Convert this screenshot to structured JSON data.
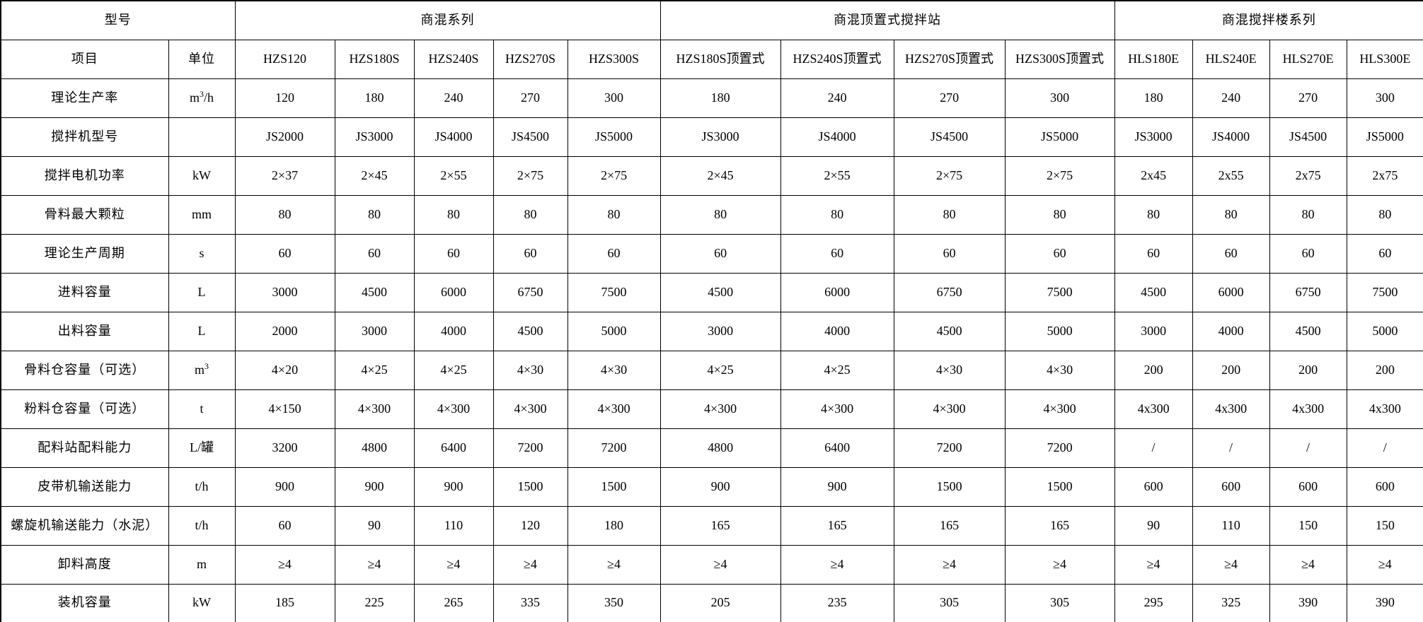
{
  "table": {
    "header_row1": {
      "model_label": "型号",
      "groups": [
        {
          "label": "商混系列",
          "span": 5
        },
        {
          "label": "商混顶置式搅拌站",
          "span": 4
        },
        {
          "label": "商混搅拌楼系列",
          "span": 4
        }
      ]
    },
    "header_row2": {
      "item_label": "项目",
      "unit_label": "单位",
      "models": [
        "HZS120",
        "HZS180S",
        "HZS240S",
        "HZS270S",
        "HZS300S",
        "HZS180S顶置式",
        "HZS240S顶置式",
        "HZS270S顶置式",
        "HZS300S顶置式",
        "HLS180E",
        "HLS240E",
        "HLS270E",
        "HLS300E"
      ]
    },
    "rows": [
      {
        "label": "理论生产率",
        "unit": "m³/h",
        "values": [
          "120",
          "180",
          "240",
          "270",
          "300",
          "180",
          "240",
          "270",
          "300",
          "180",
          "240",
          "270",
          "300"
        ]
      },
      {
        "label": "搅拌机型号",
        "unit": "",
        "values": [
          "JS2000",
          "JS3000",
          "JS4000",
          "JS4500",
          "JS5000",
          "JS3000",
          "JS4000",
          "JS4500",
          "JS5000",
          "JS3000",
          "JS4000",
          "JS4500",
          "JS5000"
        ]
      },
      {
        "label": "搅拌电机功率",
        "unit": "kW",
        "values": [
          "2×37",
          "2×45",
          "2×55",
          "2×75",
          "2×75",
          "2×45",
          "2×55",
          "2×75",
          "2×75",
          "2x45",
          "2x55",
          "2x75",
          "2x75"
        ]
      },
      {
        "label": "骨料最大颗粒",
        "unit": "mm",
        "values": [
          "80",
          "80",
          "80",
          "80",
          "80",
          "80",
          "80",
          "80",
          "80",
          "80",
          "80",
          "80",
          "80"
        ]
      },
      {
        "label": "理论生产周期",
        "unit": "s",
        "values": [
          "60",
          "60",
          "60",
          "60",
          "60",
          "60",
          "60",
          "60",
          "60",
          "60",
          "60",
          "60",
          "60"
        ]
      },
      {
        "label": "进料容量",
        "unit": "L",
        "values": [
          "3000",
          "4500",
          "6000",
          "6750",
          "7500",
          "4500",
          "6000",
          "6750",
          "7500",
          "4500",
          "6000",
          "6750",
          "7500"
        ]
      },
      {
        "label": "出料容量",
        "unit": "L",
        "values": [
          "2000",
          "3000",
          "4000",
          "4500",
          "5000",
          "3000",
          "4000",
          "4500",
          "5000",
          "3000",
          "4000",
          "4500",
          "5000"
        ]
      },
      {
        "label": "骨料仓容量（可选）",
        "unit": "m³",
        "values": [
          "4×20",
          "4×25",
          "4×25",
          "4×30",
          "4×30",
          "4×25",
          "4×25",
          "4×30",
          "4×30",
          "200",
          "200",
          "200",
          "200"
        ]
      },
      {
        "label": "粉料仓容量（可选）",
        "unit": "t",
        "values": [
          "4×150",
          "4×300",
          "4×300",
          "4×300",
          "4×300",
          "4×300",
          "4×300",
          "4×300",
          "4×300",
          "4x300",
          "4x300",
          "4x300",
          "4x300"
        ]
      },
      {
        "label": "配料站配料能力",
        "unit": "L/罐",
        "values": [
          "3200",
          "4800",
          "6400",
          "7200",
          "7200",
          "4800",
          "6400",
          "7200",
          "7200",
          "/",
          "/",
          "/",
          "/"
        ]
      },
      {
        "label": "皮带机输送能力",
        "unit": "t/h",
        "values": [
          "900",
          "900",
          "900",
          "1500",
          "1500",
          "900",
          "900",
          "1500",
          "1500",
          "600",
          "600",
          "600",
          "600"
        ]
      },
      {
        "label": "螺旋机输送能力（水泥）",
        "unit": "t/h",
        "values": [
          "60",
          "90",
          "110",
          "120",
          "180",
          "165",
          "165",
          "165",
          "165",
          "90",
          "110",
          "150",
          "150"
        ]
      },
      {
        "label": "卸料高度",
        "unit": "m",
        "values": [
          "≥4",
          "≥4",
          "≥4",
          "≥4",
          "≥4",
          "≥4",
          "≥4",
          "≥4",
          "≥4",
          "≥4",
          "≥4",
          "≥4",
          "≥4"
        ]
      },
      {
        "label": "装机容量",
        "unit": "kW",
        "values": [
          "185",
          "225",
          "265",
          "335",
          "350",
          "205",
          "235",
          "305",
          "305",
          "295",
          "325",
          "390",
          "390"
        ]
      }
    ]
  }
}
